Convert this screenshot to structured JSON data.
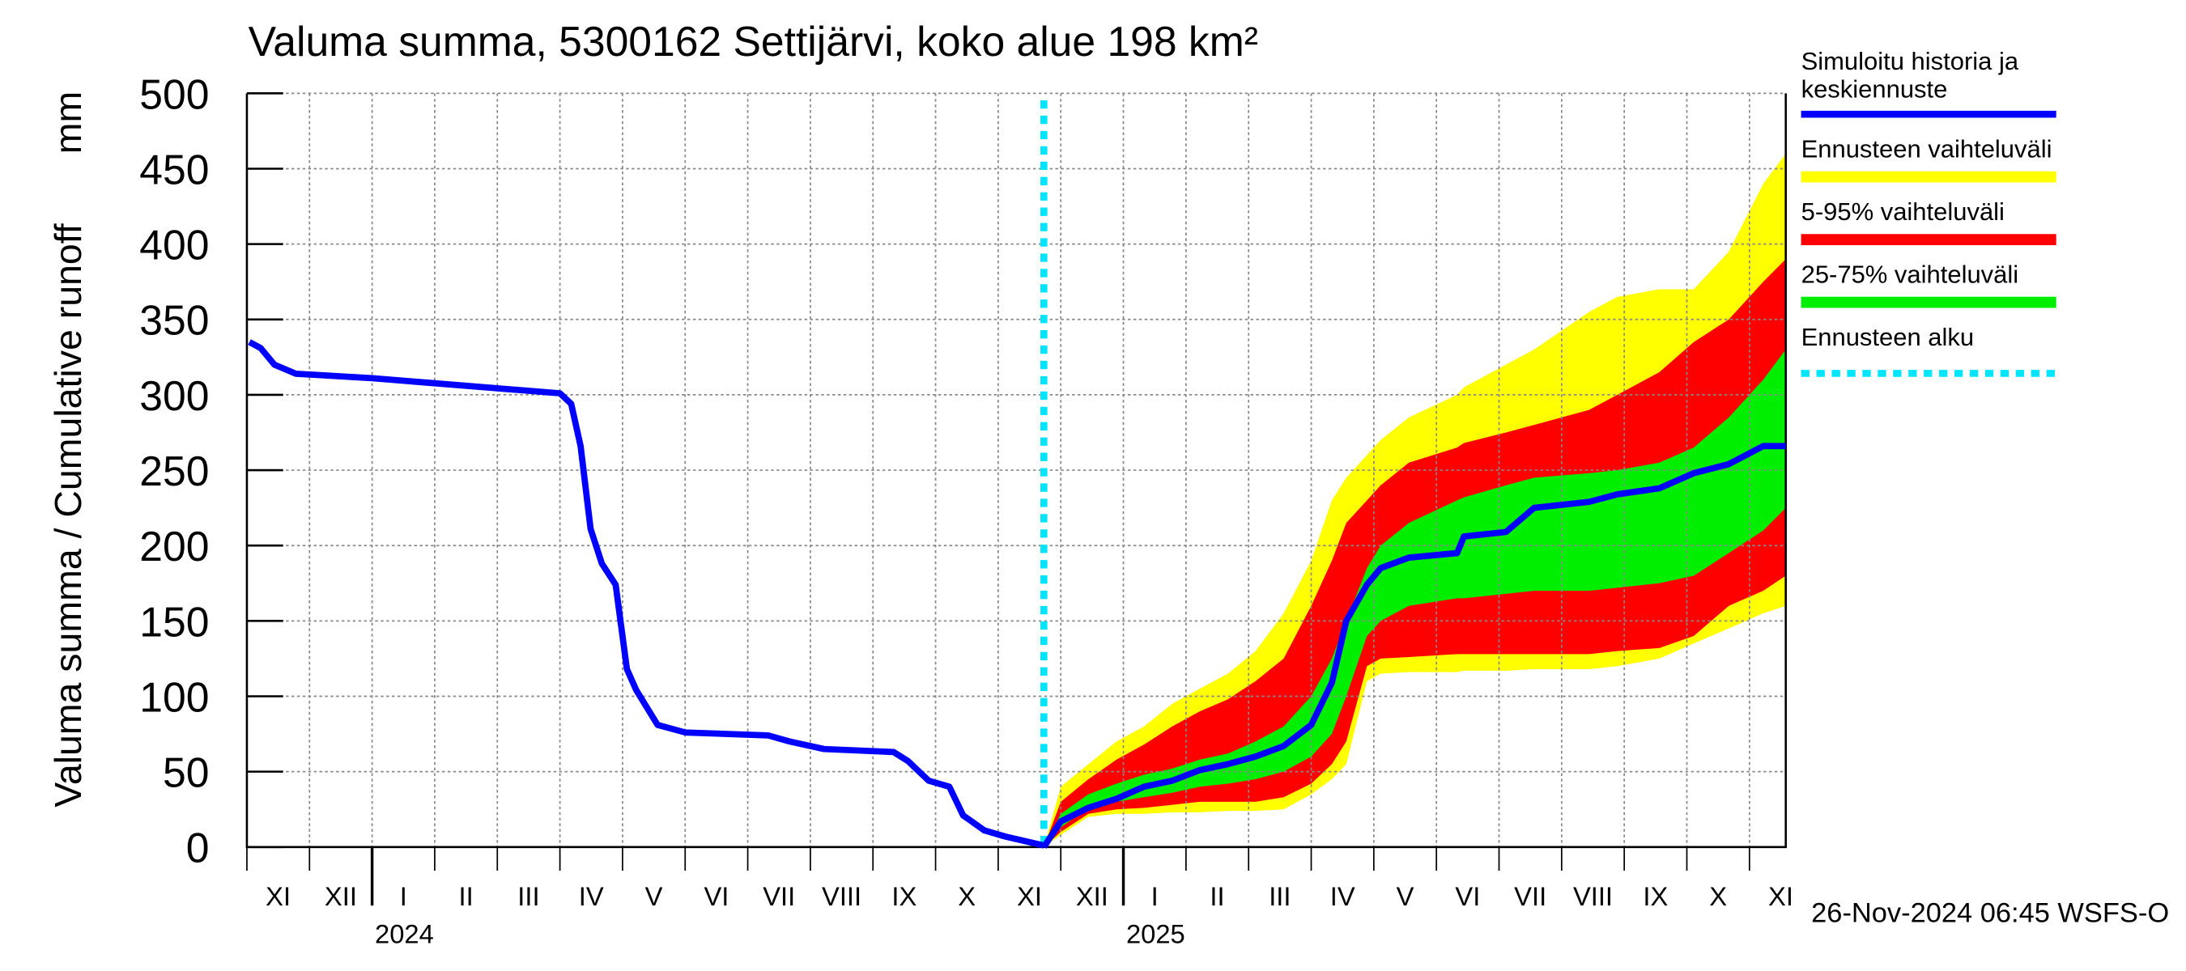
{
  "chart_data": {
    "type": "line",
    "title": "Valuma summa, 5300162 Settijärvi, koko alue 198 km²",
    "y_label": "Valuma summa / Cumulative runoff",
    "y_unit": "mm",
    "footer": "26-Nov-2024 06:45 WSFS-O",
    "ylim": [
      0,
      500
    ],
    "yticks": [
      0,
      50,
      100,
      150,
      200,
      250,
      300,
      350,
      400,
      450,
      500
    ],
    "xlim": [
      0,
      24.58
    ],
    "xticks": [
      0,
      1,
      2,
      3,
      4,
      5,
      6,
      7,
      8,
      9,
      10,
      11,
      12,
      13,
      14,
      15,
      16,
      17,
      18,
      19,
      20,
      21,
      22,
      23,
      24
    ],
    "categories": [
      "XI",
      "XII",
      "I",
      "II",
      "III",
      "IV",
      "V",
      "VI",
      "VII",
      "VIII",
      "IX",
      "X",
      "XI",
      "XII",
      "I",
      "II",
      "III",
      "IV",
      "V",
      "VI",
      "VII",
      "VIII",
      "IX",
      "X",
      "XI"
    ],
    "years": [
      "2024",
      "2025"
    ],
    "grid": true,
    "series": [
      {
        "name": [
          "Simuloitu historia ja",
          "keskiennuste"
        ],
        "color": "#0000ff",
        "x": [
          0.04,
          0.22,
          0.44,
          0.78,
          2,
          5,
          5.18,
          5.33,
          5.49,
          5.67,
          5.89,
          6.07,
          6.22,
          6.56,
          7,
          8.33,
          8.67,
          9.22,
          10.33,
          10.56,
          10.89,
          11.22,
          11.44,
          11.78,
          12.11,
          12.73
        ],
        "values": [
          335,
          331,
          320,
          314,
          311,
          301,
          294,
          266,
          211,
          188,
          174,
          118,
          104,
          81,
          76,
          74,
          70,
          65,
          63,
          57,
          44,
          40,
          21,
          11,
          7,
          1
        ]
      },
      {
        "color": "#0000ff",
        "x": [
          12.73,
          13,
          13.44,
          13.89,
          14.33,
          14.78,
          15.22,
          15.67,
          16.11,
          16.56,
          17,
          17.33,
          17.56,
          17.89,
          18.11,
          18.56,
          19.33,
          19.44,
          20.11,
          20.56,
          21.44,
          21.89,
          22.56,
          23.11,
          23.67,
          24.22,
          24.58
        ],
        "values": [
          0,
          17,
          26,
          32,
          40,
          44,
          51,
          55,
          60,
          67,
          81,
          109,
          150,
          174,
          185,
          192,
          195,
          206,
          209,
          225,
          229,
          234,
          238,
          248,
          254,
          266,
          266
        ]
      }
    ],
    "band_x": [
      12.73,
      13,
      13.44,
      13.89,
      14.33,
      14.78,
      15.22,
      15.67,
      16.11,
      16.56,
      17,
      17.33,
      17.56,
      17.89,
      18.11,
      18.56,
      19.33,
      19.44,
      20.11,
      20.56,
      21.44,
      21.89,
      22.56,
      23.11,
      23.67,
      24.22,
      24.58
    ],
    "bands": [
      {
        "name": "Ennusteen vaihteluväli",
        "color": "#ffff00",
        "lower": [
          0,
          8,
          20,
          22,
          22,
          23,
          23,
          24,
          24,
          25,
          35,
          45,
          55,
          110,
          115,
          116,
          116,
          117,
          117,
          118,
          118,
          120,
          125,
          135,
          145,
          155,
          160
        ],
        "upper": [
          0,
          40,
          55,
          70,
          80,
          95,
          105,
          115,
          130,
          155,
          190,
          230,
          245,
          260,
          270,
          285,
          300,
          305,
          320,
          330,
          355,
          365,
          370,
          370,
          395,
          440,
          460
        ]
      },
      {
        "name": "5-95% vaihteluväli",
        "color": "#ff0000",
        "lower": [
          0,
          10,
          22,
          25,
          26,
          28,
          30,
          30,
          30,
          33,
          42,
          55,
          70,
          120,
          125,
          126,
          128,
          128,
          128,
          128,
          128,
          130,
          132,
          140,
          160,
          170,
          180
        ],
        "upper": [
          0,
          30,
          45,
          58,
          68,
          80,
          90,
          98,
          110,
          125,
          160,
          190,
          215,
          230,
          240,
          255,
          265,
          268,
          275,
          280,
          290,
          300,
          315,
          335,
          350,
          375,
          390
        ]
      },
      {
        "name": "25-75% vaihteluväli",
        "color": "#00ee00",
        "lower": [
          0,
          13,
          26,
          30,
          33,
          36,
          40,
          42,
          45,
          50,
          60,
          75,
          100,
          140,
          150,
          160,
          165,
          165,
          168,
          170,
          170,
          172,
          175,
          180,
          195,
          210,
          225
        ],
        "upper": [
          0,
          22,
          35,
          42,
          48,
          52,
          58,
          62,
          70,
          80,
          100,
          125,
          150,
          185,
          200,
          215,
          230,
          232,
          240,
          245,
          248,
          250,
          255,
          265,
          285,
          310,
          330
        ]
      }
    ],
    "forecast_start": {
      "name": "Ennusteen alku",
      "x": 12.73,
      "color": "#00e5ff"
    }
  }
}
